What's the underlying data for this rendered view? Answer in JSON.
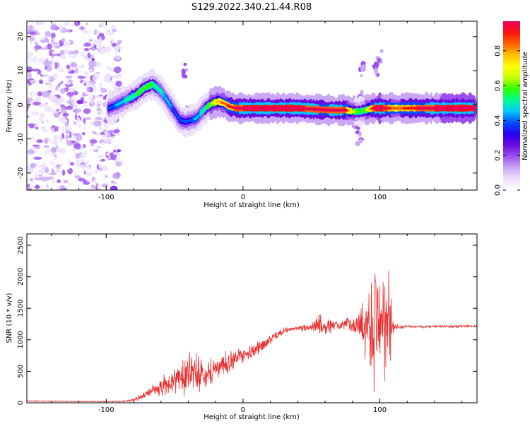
{
  "figure_title": "S129.2022.340.21.44.R08",
  "chart_data": [
    {
      "type": "heatmap",
      "title": "S129.2022.340.21.44.R08",
      "xlabel": "Height of straight line (km)",
      "ylabel": "Frequency (Hz)",
      "xlim": [
        -158,
        171
      ],
      "ylim": [
        -25,
        24.5
      ],
      "x_ticks": [
        -100,
        0,
        100
      ],
      "y_ticks": [
        -20,
        -10,
        0,
        10,
        20
      ],
      "colorbar": {
        "label": "Normalized spectral amplitude",
        "range": [
          0,
          0.97
        ],
        "ticks": [
          "0.0",
          "0.2",
          "0.4",
          "0.6",
          "0.8"
        ],
        "tick_values": [
          0,
          0.2,
          0.4,
          0.6,
          0.8
        ],
        "colors": [
          "#ffffff",
          "#ece0fc",
          "#cba6f6",
          "#9b50ee",
          "#6a0ae0",
          "#2a00f0",
          "#0050ff",
          "#00c8ff",
          "#00ff90",
          "#30ff00",
          "#c8ff00",
          "#ffff00",
          "#ffc000",
          "#ff6000",
          "#ff1010",
          "#e8005a"
        ]
      },
      "ridge": {
        "height_km": [
          -98,
          -92,
          -85,
          -78,
          -72,
          -66,
          -60,
          -55,
          -50,
          -46,
          -42,
          -38,
          -34,
          -30,
          -26,
          -22,
          -18,
          -14,
          -10,
          -5,
          0,
          40,
          60,
          70,
          75,
          80,
          85,
          90,
          95,
          100,
          110,
          130,
          150,
          168
        ],
        "frequency_hz": [
          -1,
          0,
          1.5,
          3,
          5,
          6,
          4,
          1,
          -2,
          -4.5,
          -5,
          -4.5,
          -4,
          -2,
          -0.5,
          0.5,
          1,
          0.5,
          -0.5,
          -1,
          -1,
          -1,
          -1.5,
          -1.6,
          -1.5,
          -2,
          -2,
          -1.5,
          -1,
          -1,
          -1,
          -1,
          -1,
          -1
        ],
        "amplitude": [
          0.35,
          0.38,
          0.45,
          0.5,
          0.55,
          0.5,
          0.45,
          0.4,
          0.35,
          0.35,
          0.35,
          0.35,
          0.4,
          0.45,
          0.5,
          0.6,
          0.7,
          0.75,
          0.8,
          0.85,
          0.9,
          0.92,
          0.85,
          0.9,
          0.85,
          0.6,
          0.5,
          0.55,
          0.85,
          0.95,
          0.75,
          0.85,
          0.95,
          0.95
        ]
      }
    },
    {
      "type": "line",
      "xlabel": "Height of straight line (km)",
      "ylabel": "SNR (10 * v/v)",
      "xlim": [
        -158,
        171
      ],
      "ylim": [
        0,
        2680
      ],
      "x_ticks": [
        -100,
        0,
        100
      ],
      "y_ticks": [
        0,
        500,
        1000,
        1500,
        2000,
        2500
      ],
      "series": [
        {
          "name": "SNR",
          "color": "#e83030",
          "x": [
            -158,
            -120,
            -90,
            -80,
            -70,
            -60,
            -50,
            -45,
            -40,
            -35,
            -30,
            -20,
            -10,
            0,
            10,
            20,
            30,
            40,
            50,
            55,
            60,
            70,
            80,
            85,
            90,
            95,
            100,
            105,
            108,
            110,
            120,
            140,
            160,
            171
          ],
          "y": [
            30,
            20,
            20,
            40,
            150,
            250,
            350,
            450,
            500,
            450,
            450,
            550,
            650,
            750,
            850,
            1000,
            1150,
            1180,
            1200,
            1250,
            1200,
            1230,
            1250,
            1250,
            1250,
            1300,
            1400,
            1250,
            1200,
            1200,
            1210,
            1210,
            1215,
            1220
          ],
          "amp": [
            10,
            8,
            8,
            30,
            80,
            180,
            250,
            350,
            500,
            380,
            300,
            250,
            200,
            150,
            130,
            100,
            60,
            50,
            80,
            220,
            180,
            80,
            150,
            250,
            700,
            1200,
            1300,
            1150,
            800,
            60,
            25,
            25,
            25,
            25
          ]
        }
      ]
    }
  ]
}
